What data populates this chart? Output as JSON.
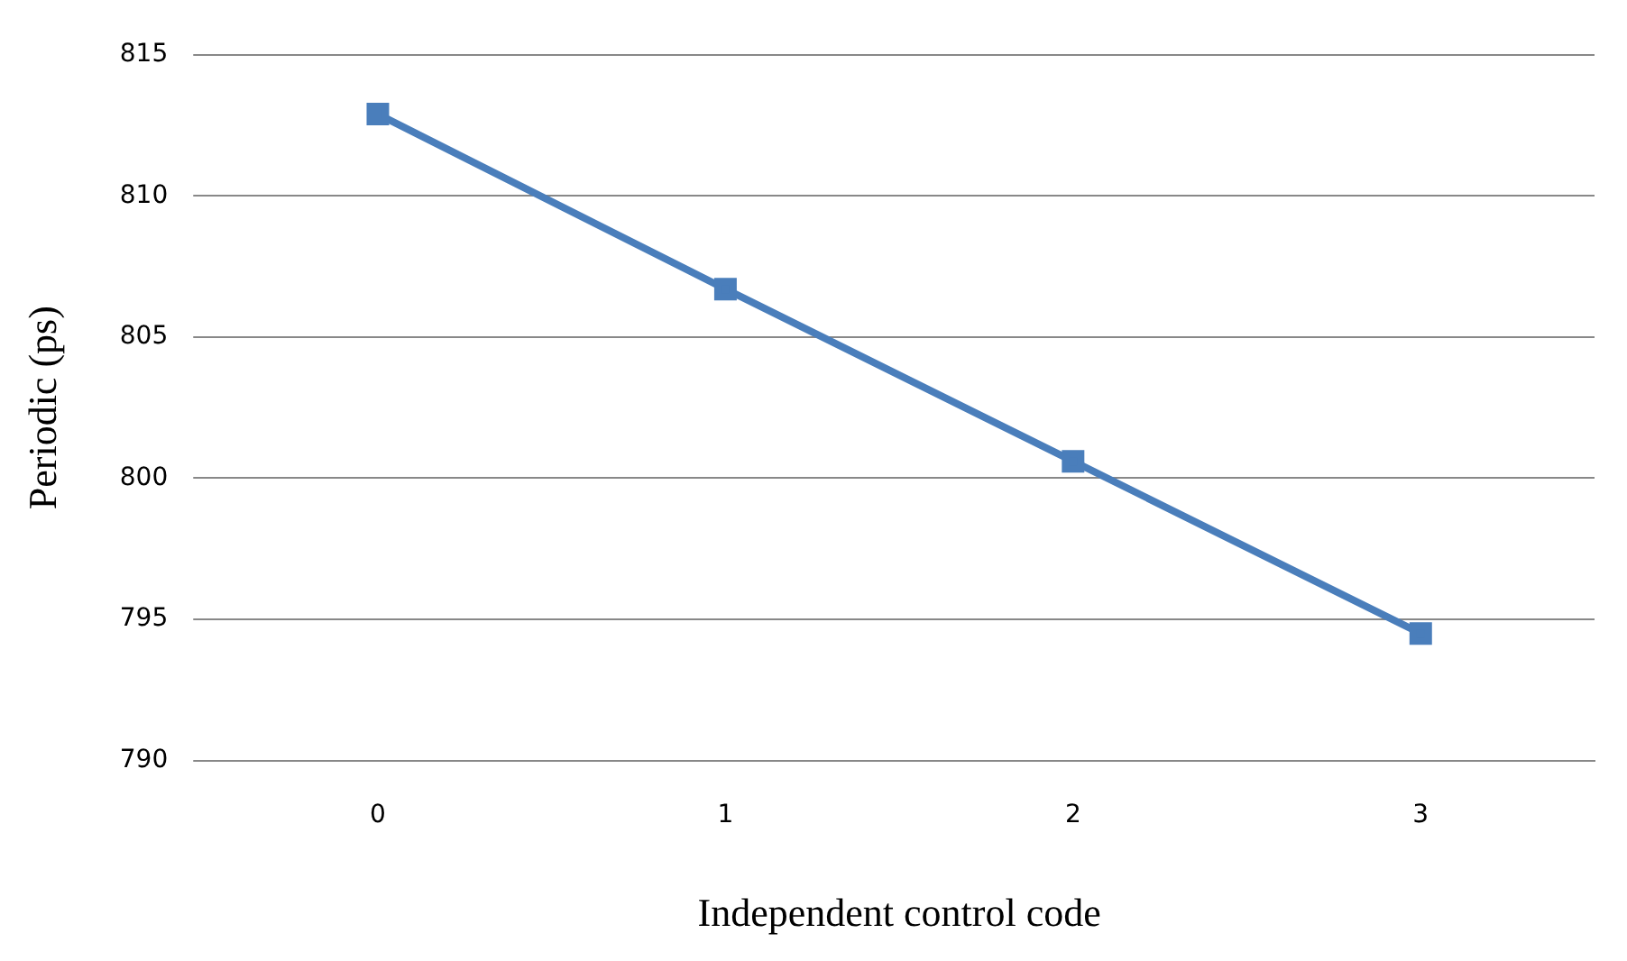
{
  "chart_data": {
    "type": "line",
    "xlabel": "Independent control code",
    "ylabel": "Periodic (ps)",
    "categories": [
      "0",
      "1",
      "2",
      "3"
    ],
    "series": [
      {
        "color": "#4a7ebb",
        "values": [
          812.9,
          806.7,
          800.6,
          794.5
        ]
      }
    ],
    "ylim": [
      790,
      815
    ],
    "yticks": [
      790,
      795,
      800,
      805,
      810,
      815
    ],
    "grid": "y",
    "marker": "square",
    "line_style": "solid"
  }
}
